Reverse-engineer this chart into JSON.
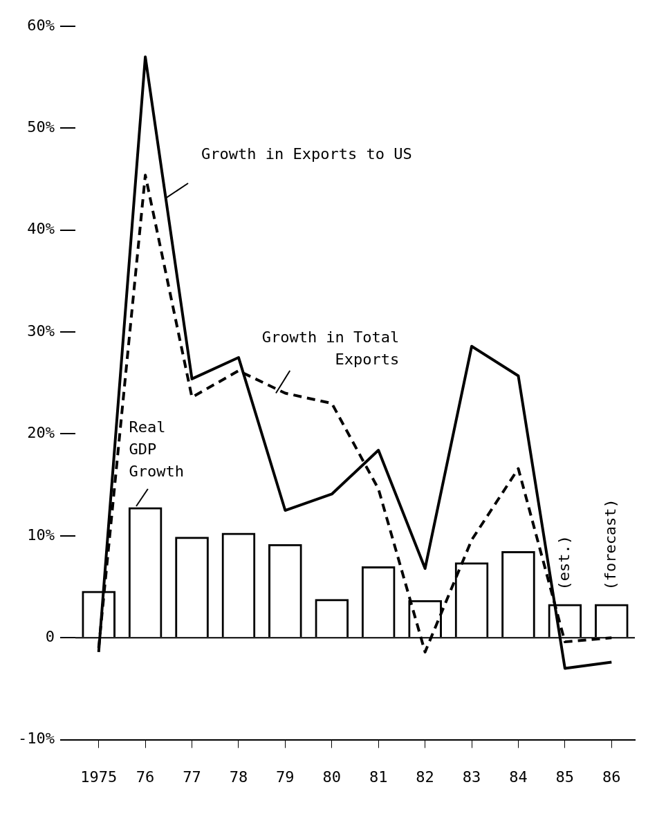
{
  "chart_data": {
    "type": "bar",
    "categories": [
      "1975",
      "76",
      "77",
      "78",
      "79",
      "80",
      "81",
      "82",
      "83",
      "84",
      "85",
      "86"
    ],
    "series": [
      {
        "name": "Real GDP Growth",
        "color": "#000000",
        "values": [
          4.6,
          12.8,
          9.9,
          10.3,
          9.2,
          3.8,
          7.0,
          3.7,
          7.4,
          8.5,
          3.3,
          3.3
        ]
      },
      {
        "name": "Growth in Exports to US",
        "type": "line",
        "color": "#000000",
        "line_style": "solid",
        "values": [
          -1.4,
          57,
          25.4,
          27.5,
          12.5,
          14.1,
          18.4,
          6.8,
          28.6,
          25.7,
          -3.0,
          -2.4
        ]
      },
      {
        "name": "Growth in Total Exports",
        "type": "line",
        "color": "#000000",
        "line_style": "dashed",
        "values": [
          -1,
          45.4,
          23.6,
          26.2,
          24,
          23,
          14.6,
          -1.4,
          9.6,
          16.6,
          -0.4,
          0
        ]
      }
    ],
    "ylim": [
      -10,
      60
    ],
    "yticks": [
      {
        "value": -10,
        "label": "-10%"
      },
      {
        "value": 0,
        "label": "0"
      },
      {
        "value": 10,
        "label": "10%"
      },
      {
        "value": 20,
        "label": "20%"
      },
      {
        "value": 30,
        "label": "30%"
      },
      {
        "value": 40,
        "label": "40%"
      },
      {
        "value": 50,
        "label": "50%"
      },
      {
        "value": 60,
        "label": "60%"
      }
    ],
    "ref_lines": [
      {
        "axis": "y",
        "value": 0,
        "color": "#000000"
      }
    ],
    "annotations": [
      {
        "text": "(est.)",
        "x": "85",
        "y": 3.3
      },
      {
        "text": "(forecast)",
        "x": "86",
        "y": 3.3
      }
    ],
    "marker": "none",
    "grid": false,
    "legend": false
  }
}
